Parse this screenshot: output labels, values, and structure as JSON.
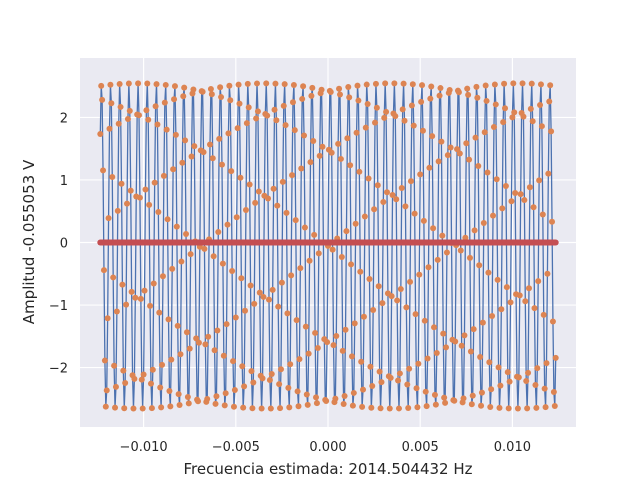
{
  "chart_data": {
    "type": "line",
    "title": "",
    "xlabel": "Frecuencia estimada: 2014.504432 Hz",
    "ylabel": "Amplitud -0.055053 V",
    "xlim": [
      -0.01345,
      0.01345
    ],
    "ylim": [
      -2.95,
      2.95
    ],
    "x_ticks": [
      -0.01,
      -0.005,
      0.0,
      0.005,
      0.01
    ],
    "x_tick_labels": [
      "−0.010",
      "−0.005",
      "0.000",
      "0.005",
      "0.010"
    ],
    "y_ticks": [
      -2,
      -1,
      0,
      1,
      2
    ],
    "y_tick_labels": [
      "−2",
      "−1",
      "0",
      "1",
      "2"
    ],
    "grid": true,
    "background": "#eaeaf2",
    "series": [
      {
        "style": "line",
        "color": "#4c72b0",
        "x_start": -0.01235,
        "x_end": 0.01235,
        "amplitude": 2.6,
        "frequency_hz": 2014.504432,
        "offset": -0.055053,
        "sample_step": 5e-05
      },
      {
        "style": "markers",
        "color": "#dd8452",
        "x_start": -0.01235,
        "x_end": 0.01235,
        "amplitude": 2.6,
        "frequency_hz": 2014.504432,
        "offset": -0.055053,
        "sample_step": 5e-05
      },
      {
        "style": "markers",
        "color": "#c44e52",
        "x_start": -0.01235,
        "x_end": 0.01235,
        "amplitude": 0,
        "frequency_hz": 0,
        "offset": 0,
        "sample_step": 5e-05
      }
    ]
  }
}
